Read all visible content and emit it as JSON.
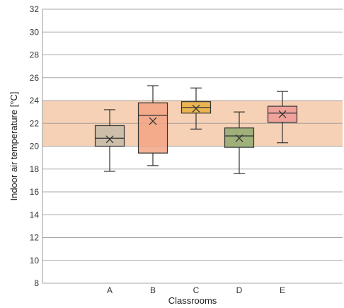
{
  "chart_data": {
    "type": "box",
    "xlabel": "Classrooms",
    "ylabel": "Indoor air temperature [°C]",
    "ylim": [
      8,
      32
    ],
    "yticks": [
      8,
      10,
      12,
      14,
      16,
      18,
      20,
      22,
      24,
      26,
      28,
      30,
      32
    ],
    "grid": true,
    "comfort_band": {
      "low": 20,
      "high": 24,
      "mid": 22,
      "color": "#f5c9a8"
    },
    "categories": [
      "A",
      "B",
      "C",
      "D",
      "E"
    ],
    "boxes": [
      {
        "label": "A",
        "min": 17.8,
        "q1": 20.0,
        "median": 20.7,
        "q3": 21.8,
        "max": 23.2,
        "mean": 20.6,
        "color": "#c6bba8"
      },
      {
        "label": "B",
        "min": 18.3,
        "q1": 19.4,
        "median": 22.7,
        "q3": 23.8,
        "max": 25.3,
        "mean": 22.2,
        "color": "#f2a585"
      },
      {
        "label": "C",
        "min": 21.5,
        "q1": 22.9,
        "median": 23.4,
        "q3": 23.9,
        "max": 25.1,
        "mean": 23.3,
        "color": "#e8b040"
      },
      {
        "label": "D",
        "min": 17.6,
        "q1": 19.9,
        "median": 20.9,
        "q3": 21.6,
        "max": 23.0,
        "mean": 20.7,
        "color": "#8faa6f"
      },
      {
        "label": "E",
        "min": 20.3,
        "q1": 22.1,
        "median": 22.9,
        "q3": 23.5,
        "max": 24.8,
        "mean": 22.8,
        "color": "#ec9a95"
      }
    ]
  }
}
